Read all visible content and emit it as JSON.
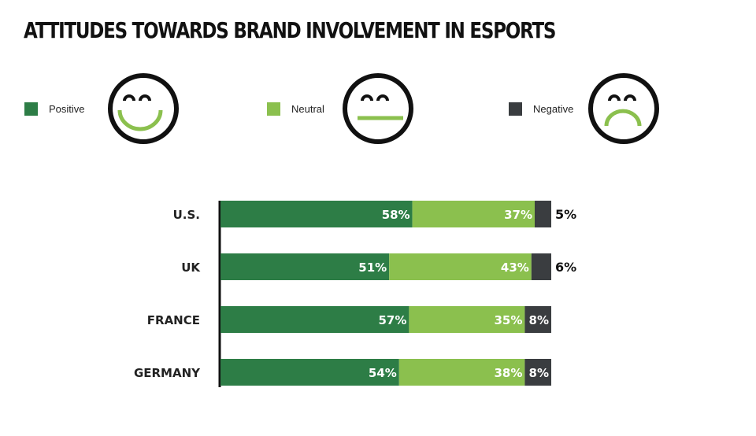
{
  "colors": {
    "positive": "#2d7d46",
    "neutral": "#8bc04e",
    "negative": "#3a3d40"
  },
  "icons": [
    "smiling-face-icon",
    "neutral-face-icon",
    "frowning-face-icon"
  ],
  "chart_data": {
    "type": "bar",
    "orientation": "horizontal",
    "stacked": true,
    "title": "ATTITUDES TOWARDS BRAND INVOLVEMENT IN ESPORTS",
    "categories": [
      "U.S.",
      "UK",
      "FRANCE",
      "GERMANY"
    ],
    "series": [
      {
        "name": "Positive",
        "values": [
          58,
          51,
          57,
          54
        ]
      },
      {
        "name": "Neutral",
        "values": [
          37,
          43,
          35,
          38
        ]
      },
      {
        "name": "Negative",
        "values": [
          5,
          6,
          8,
          8
        ]
      }
    ],
    "unit": "%",
    "xlim": [
      0,
      100
    ],
    "legend_position": "top",
    "grid": false
  }
}
